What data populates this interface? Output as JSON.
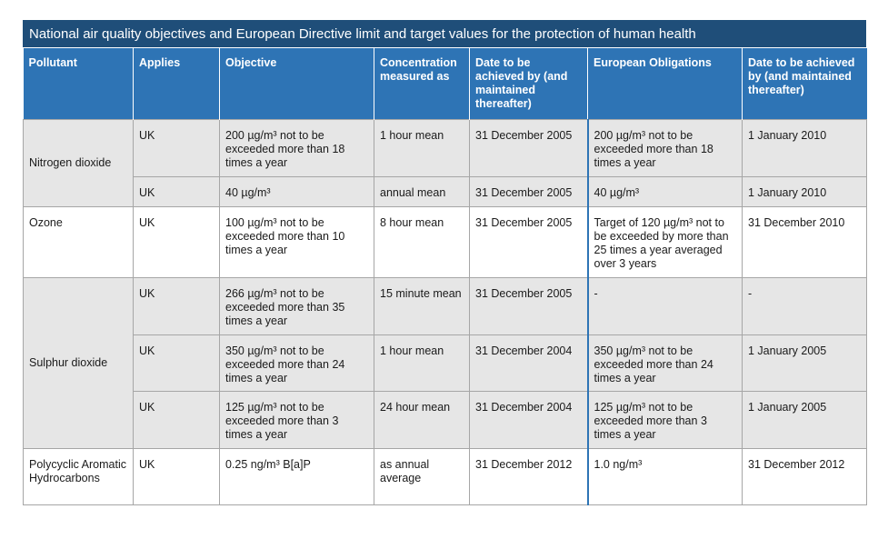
{
  "title": "National air quality objectives and European Directive limit and target values for the protection of human health",
  "headers": {
    "pollutant": "Pollutant",
    "applies": "Applies",
    "objective": "Objective",
    "measured": "Concentration measured as",
    "date": "Date to be achieved by (and maintained thereafter)",
    "eu": "European Obligations",
    "eu_date": "Date to be achieved by (and maintained thereafter)"
  },
  "rows": [
    {
      "pollutant": "Nitrogen dioxide",
      "applies": "UK",
      "objective": "200 µg/m³ not to be exceeded more than 18 times a year",
      "measured": "1 hour mean",
      "date": "31 December 2005",
      "eu": "200 µg/m³ not to be exceeded more than 18 times a year",
      "eu_date": "1 January 2010"
    },
    {
      "applies": "UK",
      "objective": "40 µg/m³",
      "measured": "annual mean",
      "date": "31 December 2005",
      "eu": "40 µg/m³",
      "eu_date": "1 January 2010"
    },
    {
      "pollutant": "Ozone",
      "applies": "UK",
      "objective": "100 µg/m³ not to be exceeded more than 10 times a year",
      "measured": "8 hour mean",
      "date": "31 December 2005",
      "eu": "Target of 120 µg/m³ not to be exceeded by more than 25 times a year averaged over 3 years",
      "eu_date": "31 December 2010"
    },
    {
      "pollutant": "Sulphur dioxide",
      "applies": "UK",
      "objective": "266 µg/m³ not to be exceeded more than 35 times a year",
      "measured": "15 minute mean",
      "date": "31 December 2005",
      "eu": "-",
      "eu_date": "-"
    },
    {
      "applies": "UK",
      "objective": "350 µg/m³ not to be exceeded more than 24 times a year",
      "measured": "1 hour mean",
      "date": "31 December 2004",
      "eu": "350 µg/m³ not to be exceeded more than 24 times a year",
      "eu_date": "1 January 2005"
    },
    {
      "applies": "UK",
      "objective": "125 µg/m³ not to be exceeded more than 3 times a year",
      "measured": "24 hour mean",
      "date": "31 December 2004",
      "eu": "125 µg/m³ not to be exceeded more than 3 times a year",
      "eu_date": "1 January 2005"
    },
    {
      "pollutant": "Polycyclic Aromatic Hydrocarbons",
      "applies": "UK",
      "objective": "0.25 ng/m³ B[a]P",
      "measured": "as annual average",
      "date": "31 December 2012",
      "eu": "1.0 ng/m³",
      "eu_date": "31 December 2012"
    }
  ]
}
